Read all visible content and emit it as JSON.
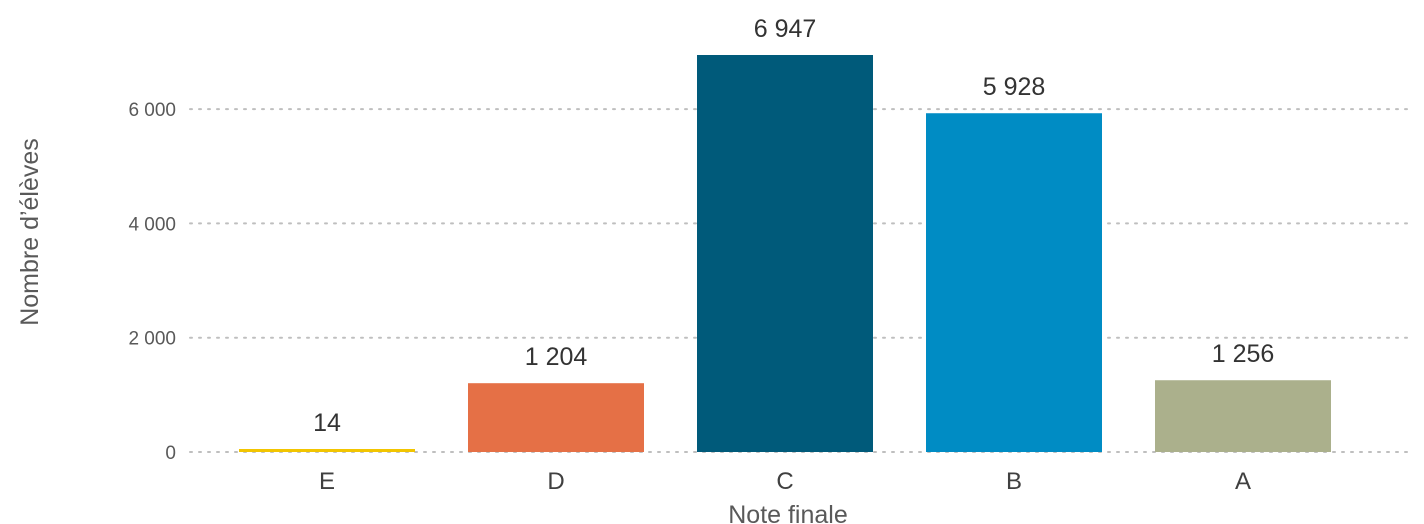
{
  "chart_data": {
    "type": "bar",
    "title": "",
    "xlabel": "Note finale",
    "ylabel": "Nombre d’élèves",
    "categories": [
      "E",
      "D",
      "C",
      "B",
      "A"
    ],
    "values": [
      14,
      1204,
      6947,
      5928,
      1256
    ],
    "value_labels": [
      "14",
      "1 204",
      "6 947",
      "5 928",
      "1 256"
    ],
    "colors": [
      "#F2C500",
      "#E57046",
      "#005A7A",
      "#008CC4",
      "#ABB08C"
    ],
    "ylim": [
      0,
      6947
    ],
    "yticks": [
      0,
      2000,
      4000,
      6000
    ],
    "ytick_labels": [
      "0",
      "2 000",
      "4 000",
      "6 000"
    ],
    "grid": true,
    "legend": "none"
  }
}
